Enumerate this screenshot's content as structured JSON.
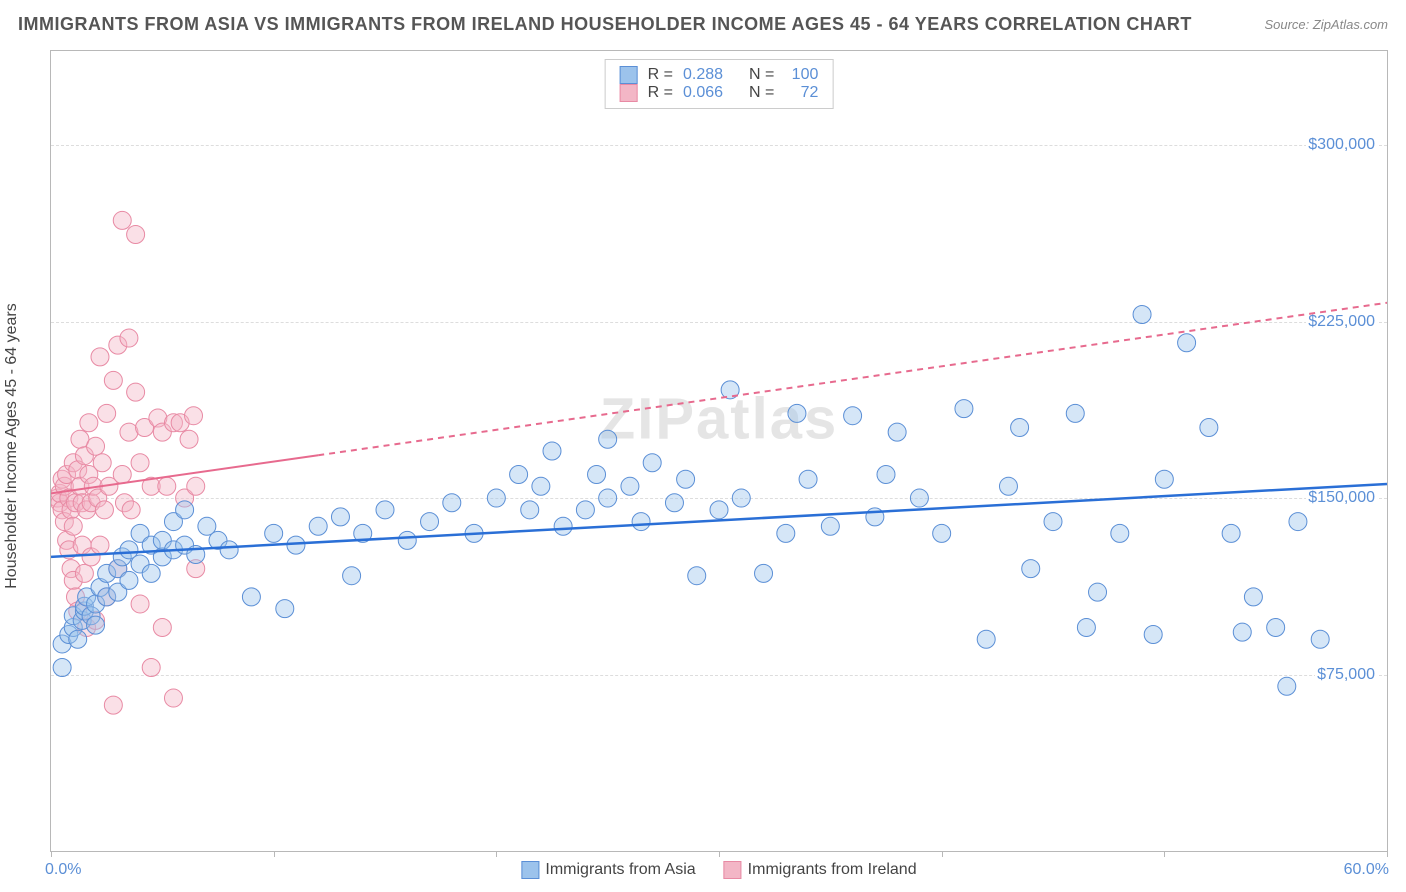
{
  "title": "IMMIGRANTS FROM ASIA VS IMMIGRANTS FROM IRELAND HOUSEHOLDER INCOME AGES 45 - 64 YEARS CORRELATION CHART",
  "source": "Source: ZipAtlas.com",
  "watermark": "ZIPatlas",
  "chart": {
    "type": "scatter",
    "y_axis_title": "Householder Income Ages 45 - 64 years",
    "xlim": [
      0,
      60
    ],
    "ylim": [
      0,
      340000
    ],
    "x_min_label": "0.0%",
    "x_max_label": "60.0%",
    "x_tick_positions": [
      0,
      10,
      20,
      30,
      40,
      50,
      60
    ],
    "y_ticks": [
      {
        "value": 75000,
        "label": "$75,000"
      },
      {
        "value": 150000,
        "label": "$150,000"
      },
      {
        "value": 225000,
        "label": "$225,000"
      },
      {
        "value": 300000,
        "label": "$300,000"
      }
    ],
    "background_color": "#ffffff",
    "border_color": "#b8b8b8",
    "grid_color": "#dddddd",
    "axis_label_color": "#5b8fd6",
    "title_color": "#555555",
    "marker_radius": 9,
    "marker_opacity": 0.42,
    "series": [
      {
        "name": "Immigrants from Asia",
        "fill_color": "#9cc3ec",
        "stroke_color": "#5b8fd6",
        "regression": {
          "x1": 0,
          "y1": 125000,
          "x2": 60,
          "y2": 156000,
          "dash_from_x": 60,
          "line_color": "#2a6fd6",
          "line_width": 2.5
        },
        "R": "0.288",
        "N": "100",
        "points": [
          [
            0.5,
            78000
          ],
          [
            0.5,
            88000
          ],
          [
            0.8,
            92000
          ],
          [
            1,
            95000
          ],
          [
            1,
            100000
          ],
          [
            1.2,
            90000
          ],
          [
            1.4,
            98000
          ],
          [
            1.5,
            102000
          ],
          [
            1.5,
            104000
          ],
          [
            1.6,
            108000
          ],
          [
            1.8,
            100000
          ],
          [
            2,
            96000
          ],
          [
            2,
            105000
          ],
          [
            2.2,
            112000
          ],
          [
            2.5,
            108000
          ],
          [
            2.5,
            118000
          ],
          [
            3,
            110000
          ],
          [
            3,
            120000
          ],
          [
            3.2,
            125000
          ],
          [
            3.5,
            115000
          ],
          [
            3.5,
            128000
          ],
          [
            4,
            122000
          ],
          [
            4,
            135000
          ],
          [
            4.5,
            118000
          ],
          [
            4.5,
            130000
          ],
          [
            5,
            125000
          ],
          [
            5,
            132000
          ],
          [
            5.5,
            128000
          ],
          [
            5.5,
            140000
          ],
          [
            6,
            130000
          ],
          [
            6,
            145000
          ],
          [
            6.5,
            126000
          ],
          [
            7,
            138000
          ],
          [
            7.5,
            132000
          ],
          [
            8,
            128000
          ],
          [
            9,
            108000
          ],
          [
            10,
            135000
          ],
          [
            10.5,
            103000
          ],
          [
            11,
            130000
          ],
          [
            12,
            138000
          ],
          [
            13,
            142000
          ],
          [
            13.5,
            117000
          ],
          [
            14,
            135000
          ],
          [
            15,
            145000
          ],
          [
            16,
            132000
          ],
          [
            17,
            140000
          ],
          [
            18,
            148000
          ],
          [
            19,
            135000
          ],
          [
            20,
            150000
          ],
          [
            21,
            160000
          ],
          [
            21.5,
            145000
          ],
          [
            22,
            155000
          ],
          [
            22.5,
            170000
          ],
          [
            23,
            138000
          ],
          [
            24,
            145000
          ],
          [
            24.5,
            160000
          ],
          [
            25,
            150000
          ],
          [
            25,
            175000
          ],
          [
            26,
            155000
          ],
          [
            26.5,
            140000
          ],
          [
            27,
            165000
          ],
          [
            28,
            148000
          ],
          [
            28.5,
            158000
          ],
          [
            29,
            117000
          ],
          [
            30,
            145000
          ],
          [
            30.5,
            196000
          ],
          [
            31,
            150000
          ],
          [
            32,
            118000
          ],
          [
            33,
            135000
          ],
          [
            33.5,
            186000
          ],
          [
            34,
            158000
          ],
          [
            35,
            138000
          ],
          [
            36,
            185000
          ],
          [
            37,
            142000
          ],
          [
            37.5,
            160000
          ],
          [
            38,
            178000
          ],
          [
            39,
            150000
          ],
          [
            40,
            135000
          ],
          [
            41,
            188000
          ],
          [
            42,
            90000
          ],
          [
            43,
            155000
          ],
          [
            43.5,
            180000
          ],
          [
            44,
            120000
          ],
          [
            45,
            140000
          ],
          [
            46,
            186000
          ],
          [
            46.5,
            95000
          ],
          [
            47,
            110000
          ],
          [
            48,
            135000
          ],
          [
            49,
            228000
          ],
          [
            49.5,
            92000
          ],
          [
            50,
            158000
          ],
          [
            51,
            216000
          ],
          [
            52,
            180000
          ],
          [
            53,
            135000
          ],
          [
            53.5,
            93000
          ],
          [
            54,
            108000
          ],
          [
            55,
            95000
          ],
          [
            55.5,
            70000
          ],
          [
            56,
            140000
          ],
          [
            57,
            90000
          ]
        ]
      },
      {
        "name": "Immigrants from Ireland",
        "fill_color": "#f3b6c6",
        "stroke_color": "#e88aa4",
        "regression": {
          "x1": 0,
          "y1": 152000,
          "x2": 60,
          "y2": 233000,
          "dash_from_x": 12,
          "line_color": "#e76a8e",
          "line_width": 2
        },
        "R": "0.066",
        "N": "72",
        "points": [
          [
            0.3,
            150000
          ],
          [
            0.4,
            148000
          ],
          [
            0.4,
            152000
          ],
          [
            0.5,
            145000
          ],
          [
            0.5,
            158000
          ],
          [
            0.6,
            140000
          ],
          [
            0.6,
            155000
          ],
          [
            0.7,
            132000
          ],
          [
            0.7,
            160000
          ],
          [
            0.8,
            128000
          ],
          [
            0.8,
            150000
          ],
          [
            0.9,
            120000
          ],
          [
            0.9,
            145000
          ],
          [
            1.0,
            115000
          ],
          [
            1.0,
            138000
          ],
          [
            1.0,
            165000
          ],
          [
            1.1,
            108000
          ],
          [
            1.1,
            148000
          ],
          [
            1.2,
            162000
          ],
          [
            1.2,
            102000
          ],
          [
            1.3,
            155000
          ],
          [
            1.3,
            175000
          ],
          [
            1.4,
            148000
          ],
          [
            1.4,
            130000
          ],
          [
            1.5,
            168000
          ],
          [
            1.5,
            118000
          ],
          [
            1.6,
            145000
          ],
          [
            1.6,
            95000
          ],
          [
            1.7,
            160000
          ],
          [
            1.7,
            182000
          ],
          [
            1.8,
            148000
          ],
          [
            1.8,
            125000
          ],
          [
            1.9,
            155000
          ],
          [
            2.0,
            172000
          ],
          [
            2.0,
            98000
          ],
          [
            2.1,
            150000
          ],
          [
            2.2,
            210000
          ],
          [
            2.2,
            130000
          ],
          [
            2.3,
            165000
          ],
          [
            2.4,
            145000
          ],
          [
            2.5,
            186000
          ],
          [
            2.5,
            108000
          ],
          [
            2.6,
            155000
          ],
          [
            2.8,
            200000
          ],
          [
            2.8,
            62000
          ],
          [
            3.0,
            215000
          ],
          [
            3.0,
            120000
          ],
          [
            3.2,
            160000
          ],
          [
            3.2,
            268000
          ],
          [
            3.3,
            148000
          ],
          [
            3.5,
            178000
          ],
          [
            3.5,
            218000
          ],
          [
            3.6,
            145000
          ],
          [
            3.8,
            195000
          ],
          [
            3.8,
            262000
          ],
          [
            4.0,
            165000
          ],
          [
            4.0,
            105000
          ],
          [
            4.2,
            180000
          ],
          [
            4.5,
            155000
          ],
          [
            4.5,
            78000
          ],
          [
            4.8,
            184000
          ],
          [
            5.0,
            178000
          ],
          [
            5.0,
            95000
          ],
          [
            5.2,
            155000
          ],
          [
            5.5,
            182000
          ],
          [
            5.5,
            65000
          ],
          [
            5.8,
            182000
          ],
          [
            6.0,
            150000
          ],
          [
            6.2,
            175000
          ],
          [
            6.4,
            185000
          ],
          [
            6.5,
            120000
          ],
          [
            6.5,
            155000
          ]
        ]
      }
    ]
  },
  "bottom_legend": {
    "asia_label": "Immigrants from Asia",
    "ireland_label": "Immigrants from Ireland"
  },
  "corr_legend": {
    "r_label": "R =",
    "n_label": "N ="
  }
}
